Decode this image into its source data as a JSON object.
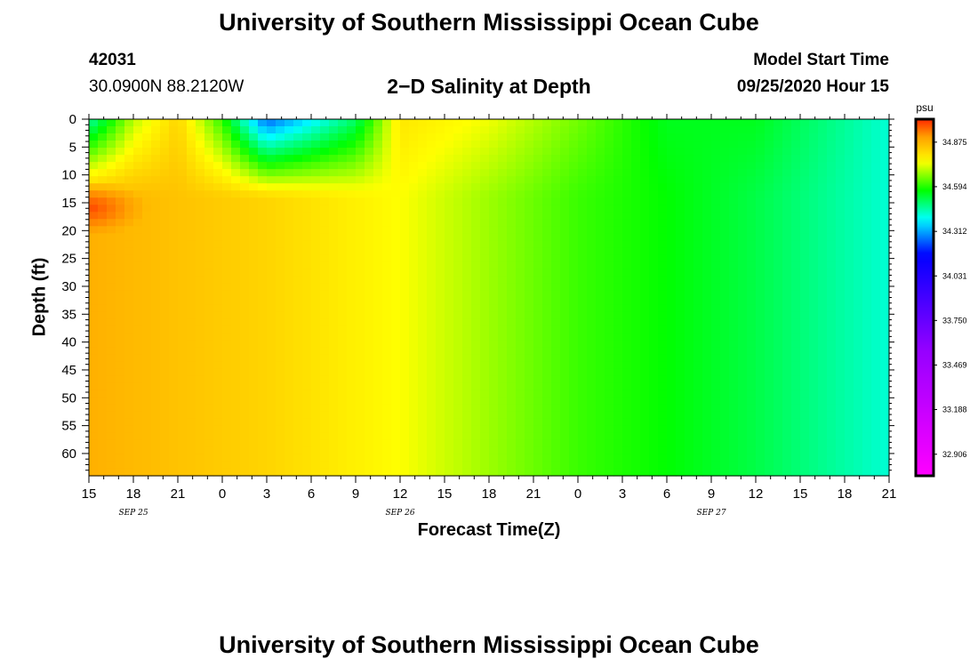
{
  "header": {
    "title": "University of Southern Mississippi Ocean Cube",
    "station_id": "42031",
    "coords": "30.0900N 88.2120W",
    "subtitle": "2−D Salinity at Depth",
    "model_start_label": "Model Start Time",
    "model_start_value": "09/25/2020 Hour 15"
  },
  "footer": {
    "title": "University of Southern Mississippi Ocean Cube"
  },
  "chart_data": {
    "type": "heatmap",
    "title": "2−D Salinity at Depth",
    "xlabel": "Forecast Time(Z)",
    "ylabel": "Depth (ft)",
    "x_tick_labels": [
      "15",
      "18",
      "21",
      "0",
      "3",
      "6",
      "9",
      "12",
      "15",
      "18",
      "21",
      "0",
      "3",
      "6",
      "9",
      "12",
      "15",
      "18",
      "21"
    ],
    "date_labels": [
      {
        "label": "SEP 25",
        "tick_index": 1
      },
      {
        "label": "SEP 26",
        "tick_index": 7
      },
      {
        "label": "SEP 27",
        "tick_index": 14
      }
    ],
    "x_range_hours": [
      0,
      54
    ],
    "y_tick_labels": [
      "0",
      "5",
      "10",
      "15",
      "20",
      "25",
      "30",
      "35",
      "40",
      "45",
      "50",
      "55",
      "60"
    ],
    "y_range": [
      0,
      64
    ],
    "colorbar": {
      "unit": "psu",
      "tick_labels": [
        "34.875",
        "34.594",
        "34.312",
        "34.031",
        "33.750",
        "33.469",
        "33.188",
        "32.906"
      ],
      "range": [
        32.77,
        35.02
      ]
    },
    "approx_surface_values": [
      {
        "hour": 0,
        "value": 34.45
      },
      {
        "hour": 3,
        "value": 34.7
      },
      {
        "hour": 6,
        "value": 34.82
      },
      {
        "hour": 9,
        "value": 34.6
      },
      {
        "hour": 12,
        "value": 34.25
      },
      {
        "hour": 18,
        "value": 34.5
      },
      {
        "hour": 21,
        "value": 34.79
      },
      {
        "hour": 27,
        "value": 34.74
      },
      {
        "hour": 33,
        "value": 34.65
      },
      {
        "hour": 39,
        "value": 34.55
      },
      {
        "hour": 45,
        "value": 34.55
      },
      {
        "hour": 54,
        "value": 34.42
      }
    ],
    "approx_deep_values": [
      {
        "hour": 0,
        "value": 34.88
      },
      {
        "hour": 12,
        "value": 34.82
      },
      {
        "hour": 21,
        "value": 34.75
      },
      {
        "hour": 27,
        "value": 34.68
      },
      {
        "hour": 33,
        "value": 34.61
      },
      {
        "hour": 39,
        "value": 34.57
      },
      {
        "hour": 45,
        "value": 34.52
      },
      {
        "hour": 54,
        "value": 34.42
      }
    ],
    "max_value_region": {
      "hour": 0,
      "depth_ft": 16,
      "value": 35.0
    }
  }
}
